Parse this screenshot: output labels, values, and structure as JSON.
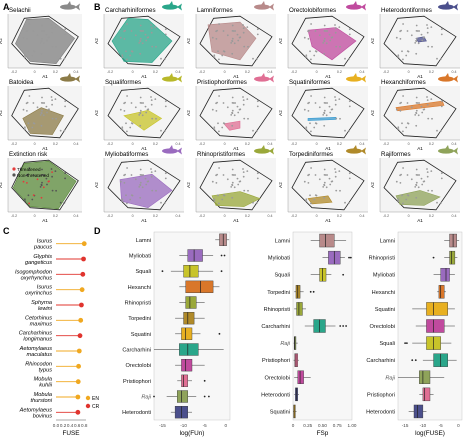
{
  "colors": {
    "hull_stroke": "#222222",
    "points": "#9a9a9a",
    "threatened": "#e33b3b",
    "nonthreatened": "#555555",
    "en": "#f0a820",
    "cr": "#e0342e"
  },
  "panel_labels": {
    "a": "A",
    "b": "B",
    "c": "C",
    "d": "D"
  },
  "axis": {
    "x": "A1",
    "y": "A2",
    "ticks": [
      "-0.2",
      "0",
      "0.2",
      "0.4"
    ]
  },
  "panelA": [
    {
      "title": "Selachii",
      "fill": "#7f7f7f",
      "icon": "shark-icon",
      "icon_color": "#8a8a8a"
    },
    {
      "title": "Batoidea",
      "fill": "#8c7b47",
      "icon": "ray-icon",
      "icon_color": "#8c7b47"
    },
    {
      "title": "Extinction risk",
      "fill": "#5a8a3a",
      "icon": "",
      "icon_color": "#e33b3b",
      "legend": [
        "Threatened",
        "Non-threatened"
      ]
    }
  ],
  "panelB": [
    {
      "title": "Carcharhiniformes",
      "fill": "#2aa68a",
      "icon": "shark-icon",
      "icon_color": "#2aa68a"
    },
    {
      "title": "Lamniformes",
      "fill": "#b88a8a",
      "icon": "shark-icon",
      "icon_color": "#b88a8a"
    },
    {
      "title": "Orectolobiformes",
      "fill": "#c04a9e",
      "icon": "shark-icon",
      "icon_color": "#c04a9e"
    },
    {
      "title": "Heterodontiformes",
      "fill": "#4b4f8c",
      "icon": "shark-icon",
      "icon_color": "#4b4f8c"
    },
    {
      "title": "Squaliformes",
      "fill": "#c8c42a",
      "icon": "shark-icon",
      "icon_color": "#b8b82a"
    },
    {
      "title": "Pristiophoriformes",
      "fill": "#e06f94",
      "icon": "sawshark-icon",
      "icon_color": "#e06f94"
    },
    {
      "title": "Squatiniformes",
      "fill": "#3a9bd0",
      "icon": "angelshark-icon",
      "icon_color": "#e8b020"
    },
    {
      "title": "Hexanchiformes",
      "fill": "#d9772a",
      "icon": "shark-icon",
      "icon_color": "#d9772a"
    },
    {
      "title": "Myliobatiformes",
      "fill": "#9a6bbf",
      "icon": "ray-icon",
      "icon_color": "#9a6bbf"
    },
    {
      "title": "Rhinopristiformes",
      "fill": "#9aa83a",
      "icon": "sawfish-icon",
      "icon_color": "#9aa83a"
    },
    {
      "title": "Torpediniformes",
      "fill": "#b08a2a",
      "icon": "torpedo-icon",
      "icon_color": "#b08a2a"
    },
    {
      "title": "Rajiformes",
      "fill": "#8fa35a",
      "icon": "skate-icon",
      "icon_color": "#8fa35a"
    }
  ],
  "chart_data": [
    {
      "type": "lollipop",
      "panel": "C",
      "xlabel": "FUSE",
      "xticks": [
        "0.0",
        "0.2",
        "0.4",
        "0.6",
        "0.8"
      ],
      "xlim": [
        0,
        0.85
      ],
      "legend": [
        "EN",
        "CR"
      ],
      "species": [
        {
          "name": [
            "Isurus",
            "paucus"
          ],
          "value": 0.8,
          "status": "EN"
        },
        {
          "name": [
            "Glyphis",
            "gangeticus"
          ],
          "value": 0.78,
          "status": "CR"
        },
        {
          "name": [
            "Isogomphodon",
            "oxyrhynchus"
          ],
          "value": 0.76,
          "status": "CR"
        },
        {
          "name": [
            "Isurus",
            "oxyrinchus"
          ],
          "value": 0.74,
          "status": "EN"
        },
        {
          "name": [
            "Sphyrna",
            "lewini"
          ],
          "value": 0.72,
          "status": "CR"
        },
        {
          "name": [
            "Cetorhinus",
            "maximus"
          ],
          "value": 0.7,
          "status": "EN"
        },
        {
          "name": [
            "Carcharhinus",
            "longimanus"
          ],
          "value": 0.68,
          "status": "CR"
        },
        {
          "name": [
            "Aetomylaeus",
            "maculatus"
          ],
          "value": 0.66,
          "status": "EN"
        },
        {
          "name": [
            "Rhincodon",
            "typus"
          ],
          "value": 0.64,
          "status": "EN"
        },
        {
          "name": [
            "Mobula",
            "kuhlii"
          ],
          "value": 0.63,
          "status": "EN"
        },
        {
          "name": [
            "Mobula",
            "thurstoni"
          ],
          "value": 0.62,
          "status": "EN"
        },
        {
          "name": [
            "Aetomylaeus",
            "bovinus"
          ],
          "value": 0.62,
          "status": "CR"
        }
      ]
    },
    {
      "type": "boxplot",
      "panel": "D",
      "xlabel": "log(FUn)",
      "xticks": [
        "-15",
        "-10",
        "-5",
        "0"
      ],
      "xlim": [
        -17,
        1
      ],
      "groups": [
        {
          "name": "Lamni",
          "fill": "#b88a8a",
          "q": [
            -2.5,
            -1.5,
            -0.6,
            0.2,
            0.8
          ],
          "out": []
        },
        {
          "name": "Myliobati",
          "fill": "#9a6bbf",
          "q": [
            -11,
            -9,
            -7.5,
            -5.5,
            -3
          ],
          "out": [
            -1,
            -0.3
          ]
        },
        {
          "name": "Squali",
          "fill": "#c8c42a",
          "q": [
            -13,
            -10,
            -8.5,
            -6.5,
            -3
          ],
          "out": [
            -15,
            -1
          ]
        },
        {
          "name": "Hexanchi",
          "fill": "#d9772a",
          "q": [
            -11,
            -9.5,
            -6,
            -3,
            -1.5
          ],
          "out": []
        },
        {
          "name": "Rhinopristi",
          "fill": "#9aa83a",
          "q": [
            -11,
            -9.5,
            -8.5,
            -7,
            -5
          ],
          "out": []
        },
        {
          "name": "Torpedini",
          "fill": "#b08a2a",
          "q": [
            -12,
            -10,
            -9,
            -7.5,
            -5
          ],
          "out": []
        },
        {
          "name": "Squatini",
          "fill": "#e8b020",
          "q": [
            -12,
            -10.5,
            -9.5,
            -8,
            -6
          ],
          "out": [
            -1.5
          ]
        },
        {
          "name": "Carcharhini",
          "fill": "#2aa68a",
          "q": [
            -17,
            -11,
            -9,
            -6.5,
            -0.5
          ],
          "out": []
        },
        {
          "name": "Orectolobi",
          "fill": "#c04a9e",
          "q": [
            -12,
            -10.5,
            -9.5,
            -8,
            -5
          ],
          "out": []
        },
        {
          "name": "Pristiophori",
          "fill": "#e06f94",
          "q": [
            -11.5,
            -10.5,
            -10,
            -9,
            -8
          ],
          "out": [
            -5
          ]
        },
        {
          "name": "Raji",
          "fill": "#8fa35a",
          "q": [
            -14,
            -11.5,
            -10.5,
            -9,
            -7
          ],
          "out": [
            -17,
            -5,
            -4
          ]
        },
        {
          "name": "Heterodonti",
          "fill": "#4b4f8c",
          "q": [
            -13,
            -12,
            -10.5,
            -9,
            -8
          ],
          "out": []
        }
      ]
    },
    {
      "type": "boxplot",
      "panel": "D",
      "xlabel": "FSp",
      "xticks": [
        "0",
        "0.25",
        "0.50",
        "0.75",
        "1.00"
      ],
      "xlim": [
        0,
        1
      ],
      "groups": [
        {
          "name": "Lamni",
          "fill": "#b88a8a",
          "q": [
            0.3,
            0.45,
            0.55,
            0.7,
            0.9
          ],
          "out": []
        },
        {
          "name": "Myliobati",
          "fill": "#9a6bbf",
          "q": [
            0.5,
            0.6,
            0.7,
            0.8,
            0.88
          ],
          "out": [
            0.95,
            0.98
          ]
        },
        {
          "name": "Squali",
          "fill": "#c8c42a",
          "q": [
            0.3,
            0.45,
            0.5,
            0.56,
            0.65
          ],
          "out": [
            0.85
          ]
        },
        {
          "name": "Torpedini",
          "fill": "#b08a2a",
          "q": [
            0.02,
            0.05,
            0.08,
            0.12,
            0.18
          ],
          "out": [
            0.3,
            0.35
          ]
        },
        {
          "name": "Rhinopristi",
          "fill": "#9aa83a",
          "q": [
            0.02,
            0.06,
            0.1,
            0.16,
            0.22
          ],
          "out": []
        },
        {
          "name": "Carcharhini",
          "fill": "#2aa68a",
          "q": [
            0.2,
            0.35,
            0.45,
            0.55,
            0.72
          ],
          "out": [
            0.8,
            0.85,
            0.9
          ]
        },
        {
          "name": "Raji",
          "fill": "#8fa35a",
          "q": [
            0.01,
            0.02,
            0.03,
            0.05,
            0.08
          ],
          "out": []
        },
        {
          "name": "Pristiophori",
          "fill": "#e06f94",
          "q": [
            0.01,
            0.03,
            0.05,
            0.08,
            0.1
          ],
          "out": []
        },
        {
          "name": "Orectolobi",
          "fill": "#c04a9e",
          "q": [
            0.02,
            0.08,
            0.12,
            0.18,
            0.3
          ],
          "out": []
        },
        {
          "name": "Heterodonti",
          "fill": "#4b4f8c",
          "q": [
            0.02,
            0.04,
            0.06,
            0.08,
            0.1
          ],
          "out": []
        },
        {
          "name": "Squatini",
          "fill": "#e8b020",
          "q": [
            0.0,
            0.01,
            0.02,
            0.04,
            0.06
          ],
          "out": []
        }
      ]
    },
    {
      "type": "boxplot",
      "panel": "D",
      "xlabel": "log(FUSE)",
      "xticks": [
        "-15",
        "-10",
        "-5",
        "0"
      ],
      "xlim": [
        -17,
        1
      ],
      "groups": [
        {
          "name": "Lamni",
          "fill": "#b88a8a",
          "q": [
            -4,
            -2.5,
            -1.5,
            -0.5,
            0.2
          ],
          "out": []
        },
        {
          "name": "Rhinopristi",
          "fill": "#9aa83a",
          "q": [
            -4,
            -2.5,
            -2,
            -1,
            -0.3
          ],
          "out": [
            -7
          ]
        },
        {
          "name": "Myliobati",
          "fill": "#9a6bbf",
          "q": [
            -7,
            -5,
            -3.5,
            -2.5,
            -1
          ],
          "out": []
        },
        {
          "name": "Hexanchi",
          "fill": "#d9772a",
          "q": [
            -6,
            -5.5,
            -5,
            -4,
            -3.5
          ],
          "out": []
        },
        {
          "name": "Squatini",
          "fill": "#e8b020",
          "q": [
            -13,
            -9,
            -7,
            -3,
            -1
          ],
          "out": []
        },
        {
          "name": "Orectolobi",
          "fill": "#c04a9e",
          "q": [
            -12,
            -9,
            -7,
            -4,
            -1
          ],
          "out": []
        },
        {
          "name": "Squali",
          "fill": "#c8c42a",
          "q": [
            -13,
            -9,
            -7,
            -5,
            -2
          ],
          "out": [
            -15,
            -14.5
          ]
        },
        {
          "name": "Carcharhini",
          "fill": "#2aa68a",
          "q": [
            -10,
            -7,
            -5,
            -3,
            -0.5
          ],
          "out": [
            -12,
            -13
          ]
        },
        {
          "name": "Raji",
          "fill": "#8fa35a",
          "q": [
            -17,
            -11,
            -10,
            -8,
            -4
          ],
          "out": []
        },
        {
          "name": "Pristiophori",
          "fill": "#e06f94",
          "q": [
            -11,
            -10,
            -9.5,
            -8,
            -7
          ],
          "out": []
        },
        {
          "name": "Heterodonti",
          "fill": "#4b4f8c",
          "q": [
            -14,
            -12.5,
            -11.5,
            -10,
            -9
          ],
          "out": []
        }
      ]
    }
  ]
}
